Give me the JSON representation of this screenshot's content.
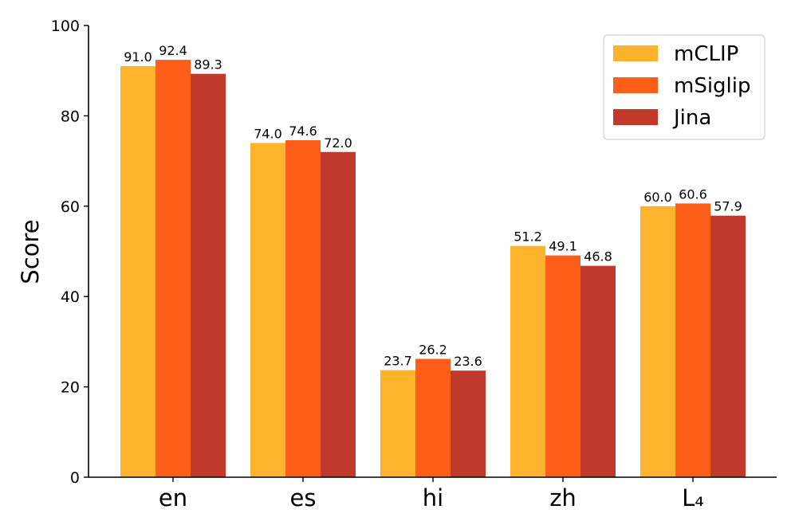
{
  "chart_data": {
    "type": "bar",
    "title": "",
    "xlabel": "",
    "ylabel": "Score",
    "ylim": [
      0,
      100
    ],
    "yticks": [
      0,
      20,
      40,
      60,
      80,
      100
    ],
    "categories": [
      "en",
      "es",
      "hi",
      "zh",
      "L4"
    ],
    "category_display": [
      "en",
      "es",
      "hi",
      "zh",
      "L₄"
    ],
    "series": [
      {
        "name": "mCLIP",
        "color": "#FDB32B",
        "values": [
          91.0,
          74.0,
          23.7,
          51.2,
          60.0
        ],
        "labels": [
          "91.0",
          "74.0",
          "23.7",
          "51.2",
          "60.0"
        ]
      },
      {
        "name": "mSiglip",
        "color": "#FD5E19",
        "values": [
          92.4,
          74.6,
          26.2,
          49.1,
          60.6
        ],
        "labels": [
          "92.4",
          "74.6",
          "26.2",
          "49.1",
          "60.6"
        ]
      },
      {
        "name": "Jina",
        "color": "#C0392B",
        "values": [
          89.3,
          72.0,
          23.6,
          46.8,
          57.9
        ],
        "labels": [
          "89.3",
          "72.0",
          "23.6",
          "46.8",
          "57.9"
        ]
      }
    ],
    "legend_position": "top-right",
    "grid": false,
    "data_labels": true
  }
}
